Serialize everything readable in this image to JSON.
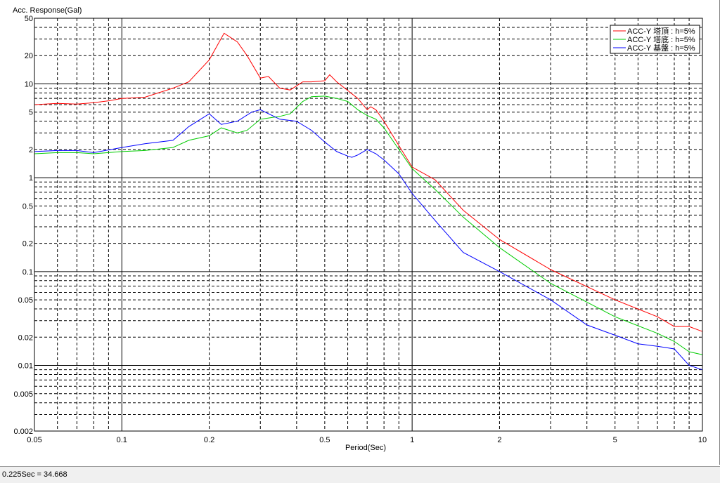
{
  "status": {
    "text": "0.225Sec = 34.668"
  },
  "chart_data": {
    "type": "line",
    "title": "",
    "ylabel": "Acc. Response(Gal)",
    "xlabel": "Period(Sec)",
    "xscale": "log",
    "yscale": "log",
    "xlim": [
      0.05,
      10
    ],
    "ylim": [
      0.002,
      50
    ],
    "grid": true,
    "legend_position": "top-right",
    "x_tick_labels": [
      {
        "v": 0.05,
        "label": "0.05"
      },
      {
        "v": 0.1,
        "label": "0.1"
      },
      {
        "v": 0.2,
        "label": "0.2"
      },
      {
        "v": 0.5,
        "label": "0.5"
      },
      {
        "v": 1,
        "label": "1"
      },
      {
        "v": 2,
        "label": "2"
      },
      {
        "v": 5,
        "label": "5"
      },
      {
        "v": 10,
        "label": "10"
      }
    ],
    "y_tick_labels": [
      {
        "v": 50,
        "label": "50"
      },
      {
        "v": 20,
        "label": "20"
      },
      {
        "v": 10,
        "label": "10"
      },
      {
        "v": 5,
        "label": "5"
      },
      {
        "v": 2,
        "label": "2"
      },
      {
        "v": 1,
        "label": "1"
      },
      {
        "v": 0.5,
        "label": "0.5"
      },
      {
        "v": 0.2,
        "label": "0.2"
      },
      {
        "v": 0.1,
        "label": "0.1"
      },
      {
        "v": 0.05,
        "label": "0.05"
      },
      {
        "v": 0.02,
        "label": "0.02"
      },
      {
        "v": 0.01,
        "label": "0.01"
      },
      {
        "v": 0.005,
        "label": "0.005"
      },
      {
        "v": 0.002,
        "label": "0.002"
      }
    ],
    "series": [
      {
        "name": "ACC-Y 塔頂 : h=5%",
        "color": "#ff0000",
        "points": [
          [
            0.05,
            6.0
          ],
          [
            0.06,
            6.2
          ],
          [
            0.07,
            6.1
          ],
          [
            0.08,
            6.3
          ],
          [
            0.09,
            6.6
          ],
          [
            0.1,
            7.0
          ],
          [
            0.12,
            7.2
          ],
          [
            0.15,
            9.0
          ],
          [
            0.17,
            10.5
          ],
          [
            0.2,
            18
          ],
          [
            0.225,
            34.668
          ],
          [
            0.25,
            28
          ],
          [
            0.27,
            20
          ],
          [
            0.3,
            11.5
          ],
          [
            0.32,
            12
          ],
          [
            0.35,
            9.0
          ],
          [
            0.38,
            8.6
          ],
          [
            0.42,
            10.5
          ],
          [
            0.45,
            10.5
          ],
          [
            0.5,
            10.8
          ],
          [
            0.52,
            12.5
          ],
          [
            0.55,
            10.5
          ],
          [
            0.6,
            8.5
          ],
          [
            0.65,
            7.0
          ],
          [
            0.7,
            5.3
          ],
          [
            0.72,
            5.7
          ],
          [
            0.75,
            5.3
          ],
          [
            0.8,
            4.0
          ],
          [
            0.9,
            2.2
          ],
          [
            1.0,
            1.3
          ],
          [
            1.2,
            0.95
          ],
          [
            1.5,
            0.45
          ],
          [
            2.0,
            0.22
          ],
          [
            3.0,
            0.105
          ],
          [
            5.0,
            0.05
          ],
          [
            7.0,
            0.033
          ],
          [
            8.0,
            0.026
          ],
          [
            9.0,
            0.026
          ],
          [
            10.0,
            0.023
          ]
        ]
      },
      {
        "name": "ACC-Y 塔底 : h=5%",
        "color": "#00cc00",
        "points": [
          [
            0.05,
            1.8
          ],
          [
            0.06,
            1.85
          ],
          [
            0.07,
            1.85
          ],
          [
            0.08,
            1.8
          ],
          [
            0.1,
            1.9
          ],
          [
            0.12,
            1.95
          ],
          [
            0.15,
            2.1
          ],
          [
            0.17,
            2.5
          ],
          [
            0.2,
            2.8
          ],
          [
            0.22,
            3.4
          ],
          [
            0.25,
            3.0
          ],
          [
            0.27,
            3.2
          ],
          [
            0.3,
            4.2
          ],
          [
            0.35,
            4.5
          ],
          [
            0.38,
            4.8
          ],
          [
            0.42,
            6.5
          ],
          [
            0.45,
            7.3
          ],
          [
            0.5,
            7.4
          ],
          [
            0.55,
            7.0
          ],
          [
            0.6,
            6.5
          ],
          [
            0.65,
            5.3
          ],
          [
            0.7,
            4.6
          ],
          [
            0.75,
            4.2
          ],
          [
            0.8,
            3.4
          ],
          [
            0.9,
            2.0
          ],
          [
            1.0,
            1.25
          ],
          [
            1.2,
            0.75
          ],
          [
            1.5,
            0.38
          ],
          [
            2.0,
            0.18
          ],
          [
            3.0,
            0.075
          ],
          [
            5.0,
            0.033
          ],
          [
            7.0,
            0.022
          ],
          [
            8.0,
            0.018
          ],
          [
            9.0,
            0.014
          ],
          [
            10.0,
            0.013
          ]
        ]
      },
      {
        "name": "ACC-Y 基盤 : h=5%",
        "color": "#0000ff",
        "points": [
          [
            0.05,
            1.9
          ],
          [
            0.06,
            1.95
          ],
          [
            0.07,
            1.95
          ],
          [
            0.08,
            1.85
          ],
          [
            0.1,
            2.1
          ],
          [
            0.12,
            2.3
          ],
          [
            0.15,
            2.5
          ],
          [
            0.17,
            3.5
          ],
          [
            0.2,
            4.8
          ],
          [
            0.22,
            3.7
          ],
          [
            0.25,
            4.0
          ],
          [
            0.28,
            5.0
          ],
          [
            0.3,
            5.3
          ],
          [
            0.35,
            4.2
          ],
          [
            0.4,
            4.0
          ],
          [
            0.45,
            3.2
          ],
          [
            0.5,
            2.4
          ],
          [
            0.55,
            1.9
          ],
          [
            0.6,
            1.7
          ],
          [
            0.62,
            1.65
          ],
          [
            0.65,
            1.75
          ],
          [
            0.7,
            2.0
          ],
          [
            0.75,
            1.8
          ],
          [
            0.8,
            1.55
          ],
          [
            0.9,
            1.1
          ],
          [
            1.0,
            0.68
          ],
          [
            1.2,
            0.35
          ],
          [
            1.5,
            0.16
          ],
          [
            2.0,
            0.1
          ],
          [
            3.0,
            0.05
          ],
          [
            4.0,
            0.027
          ],
          [
            5.0,
            0.021
          ],
          [
            6.0,
            0.017
          ],
          [
            7.0,
            0.016
          ],
          [
            8.0,
            0.015
          ],
          [
            9.0,
            0.01
          ],
          [
            10.0,
            0.009
          ]
        ]
      }
    ]
  }
}
